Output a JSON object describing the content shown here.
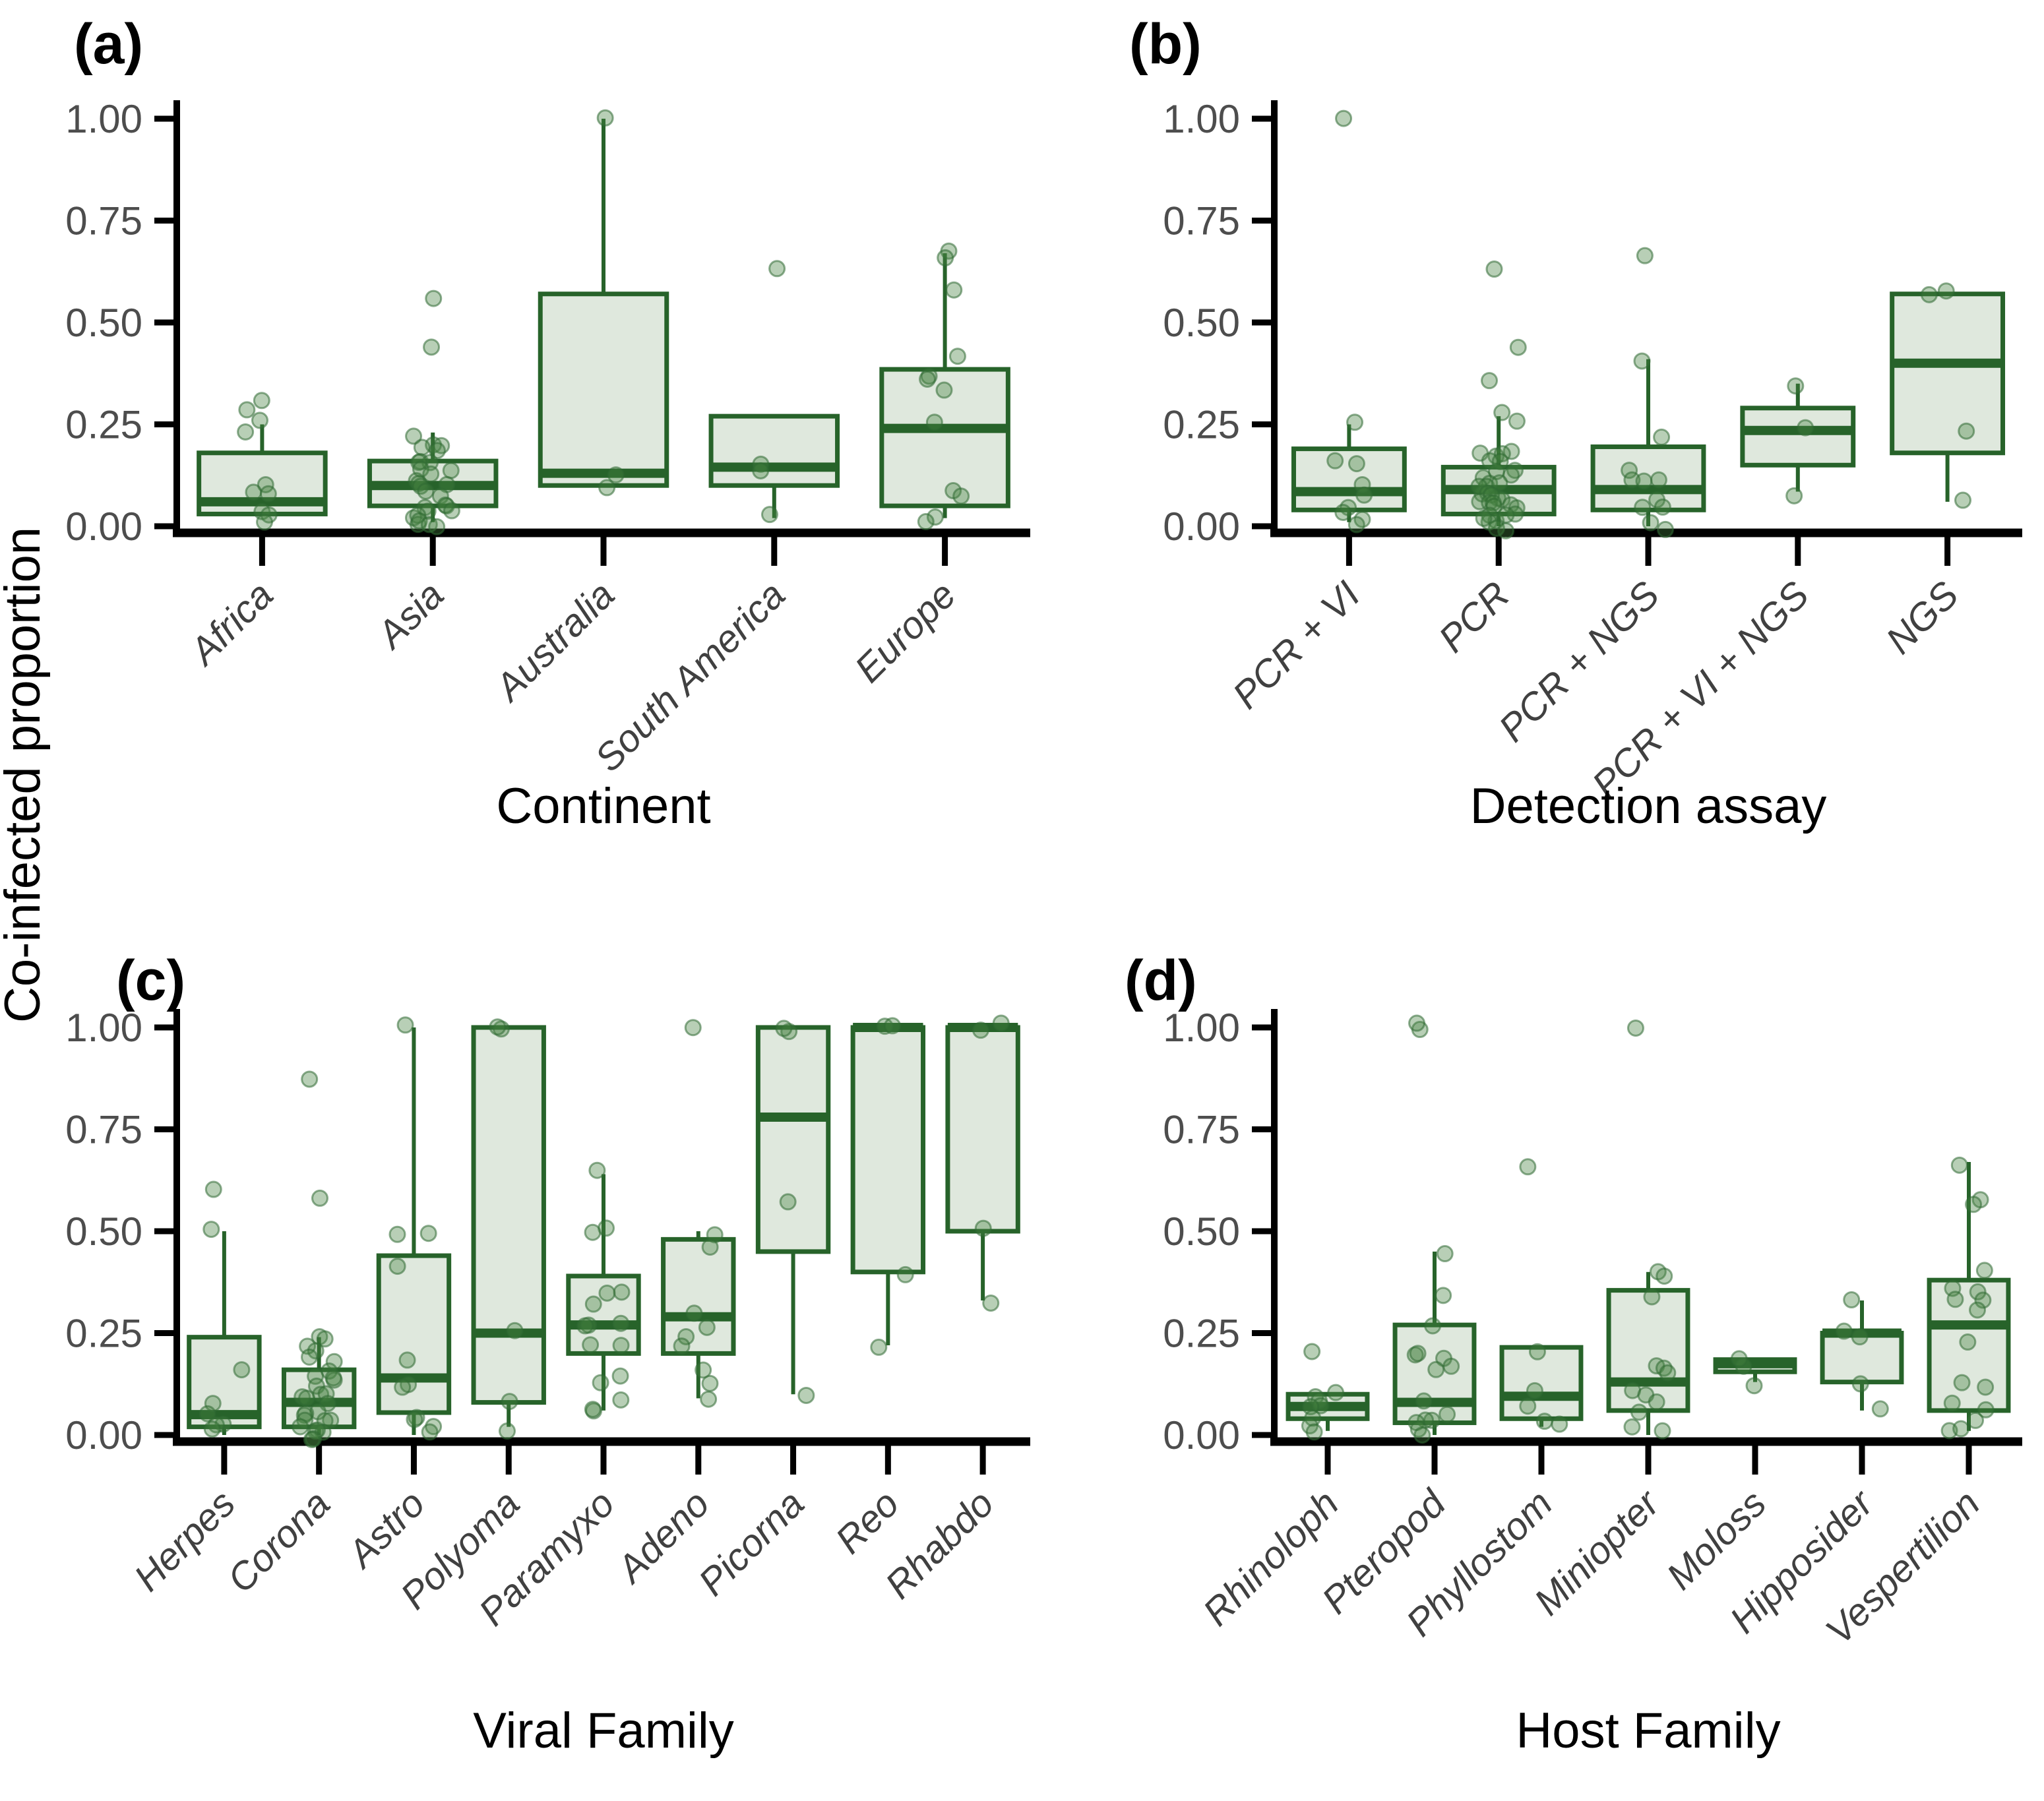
{
  "figure": {
    "ylabel": "Co-infected proportion",
    "y_ticks": [
      "0.00",
      "0.25",
      "0.50",
      "0.75",
      "1.00"
    ],
    "y_tick_values": [
      0,
      0.25,
      0.5,
      0.75,
      1.0
    ],
    "colors": {
      "box_stroke": "#27632a",
      "box_fill": "#dfe8dd",
      "point_fill": "#45803f",
      "point_stroke": "#2f6a33",
      "axis": "#000000",
      "tick_label": "#4d4d4d",
      "category_label": "#404040"
    }
  },
  "chart_data": [
    {
      "type": "box",
      "panel_label": "(a)",
      "xlabel": "Continent",
      "ylabel": "Co-infected proportion",
      "ylim": [
        0,
        1
      ],
      "grid": false,
      "categories": [
        "Africa",
        "Asia",
        "Australia",
        "South America",
        "Europe"
      ],
      "series": [
        {
          "name": "Africa",
          "q1": 0.03,
          "median": 0.06,
          "q3": 0.18,
          "whisker_low": 0.03,
          "whisker_high": 0.25,
          "points": [
            0.31,
            0.28,
            0.26,
            0.24,
            0.1,
            0.09,
            0.07,
            0.03,
            0.02,
            0.01
          ]
        },
        {
          "name": "Asia",
          "q1": 0.05,
          "median": 0.1,
          "q3": 0.16,
          "whisker_low": 0.01,
          "whisker_high": 0.23,
          "points": [
            0.57,
            0.45,
            0.23,
            0.21,
            0.2,
            0.19,
            0.18,
            0.17,
            0.16,
            0.15,
            0.14,
            0.13,
            0.12,
            0.11,
            0.1,
            0.1,
            0.09,
            0.08,
            0.07,
            0.06,
            0.05,
            0.04,
            0.03,
            0.03,
            0.02,
            0.02,
            0.01,
            0.01,
            0.0,
            0.0
          ]
        },
        {
          "name": "Australia",
          "q1": 0.1,
          "median": 0.13,
          "q3": 0.57,
          "whisker_low": 0.1,
          "whisker_high": 1.0,
          "points": [
            1.0,
            0.13,
            0.09
          ]
        },
        {
          "name": "South America",
          "q1": 0.1,
          "median": 0.145,
          "q3": 0.27,
          "whisker_low": 0.02,
          "whisker_high": 0.27,
          "points": [
            0.64,
            0.15,
            0.14,
            0.02
          ]
        },
        {
          "name": "Europe",
          "q1": 0.05,
          "median": 0.24,
          "q3": 0.385,
          "whisker_low": 0.02,
          "whisker_high": 0.67,
          "points": [
            0.67,
            0.65,
            0.57,
            0.41,
            0.36,
            0.35,
            0.34,
            0.25,
            0.08,
            0.07,
            0.03,
            0.02
          ]
        }
      ]
    },
    {
      "type": "box",
      "panel_label": "(b)",
      "xlabel": "Detection assay",
      "ylabel": "Co-infected proportion",
      "ylim": [
        0,
        1
      ],
      "grid": false,
      "categories": [
        "PCR + VI",
        "PCR",
        "PCR + NGS",
        "PCR + VI + NGS",
        "NGS"
      ],
      "series": [
        {
          "name": "PCR + VI",
          "q1": 0.04,
          "median": 0.085,
          "q3": 0.19,
          "whisker_low": 0.01,
          "whisker_high": 0.25,
          "points": [
            1.0,
            0.25,
            0.16,
            0.15,
            0.1,
            0.07,
            0.05,
            0.04,
            0.02,
            0.01
          ]
        },
        {
          "name": "PCR",
          "q1": 0.03,
          "median": 0.09,
          "q3": 0.145,
          "whisker_low": 0.0,
          "whisker_high": 0.27,
          "points": [
            0.64,
            0.45,
            0.35,
            0.27,
            0.26,
            0.19,
            0.18,
            0.18,
            0.17,
            0.16,
            0.15,
            0.14,
            0.13,
            0.13,
            0.12,
            0.11,
            0.1,
            0.1,
            0.09,
            0.09,
            0.08,
            0.08,
            0.07,
            0.07,
            0.06,
            0.06,
            0.05,
            0.05,
            0.04,
            0.04,
            0.03,
            0.03,
            0.02,
            0.02,
            0.01,
            0.01,
            0.0,
            0.0
          ]
        },
        {
          "name": "PCR + NGS",
          "q1": 0.04,
          "median": 0.09,
          "q3": 0.195,
          "whisker_low": 0.0,
          "whisker_high": 0.41,
          "points": [
            0.66,
            0.41,
            0.22,
            0.13,
            0.12,
            0.11,
            0.1,
            0.06,
            0.05,
            0.04,
            0.01,
            0.0
          ]
        },
        {
          "name": "PCR + VI + NGS",
          "q1": 0.15,
          "median": 0.235,
          "q3": 0.29,
          "whisker_low": 0.085,
          "whisker_high": 0.35,
          "points": [
            0.35,
            0.24,
            0.085
          ]
        },
        {
          "name": "NGS",
          "q1": 0.18,
          "median": 0.4,
          "q3": 0.57,
          "whisker_low": 0.06,
          "whisker_high": 0.57,
          "points": [
            0.57,
            0.56,
            0.23,
            0.06
          ]
        }
      ]
    },
    {
      "type": "box",
      "panel_label": "(c)",
      "xlabel": "Viral Family",
      "ylabel": "Co-infected proportion",
      "ylim": [
        0,
        1
      ],
      "grid": false,
      "categories": [
        "Herpes",
        "Corona",
        "Astro",
        "Polyoma",
        "Paramyxo",
        "Adeno",
        "Picorna",
        "Reo",
        "Rhabdo"
      ],
      "series": [
        {
          "name": "Herpes",
          "q1": 0.02,
          "median": 0.05,
          "q3": 0.24,
          "whisker_low": 0.0,
          "whisker_high": 0.5,
          "points": [
            0.6,
            0.5,
            0.15,
            0.07,
            0.05,
            0.03,
            0.02,
            0.01
          ]
        },
        {
          "name": "Corona",
          "q1": 0.02,
          "median": 0.08,
          "q3": 0.16,
          "whisker_low": 0.0,
          "whisker_high": 0.24,
          "points": [
            0.88,
            0.57,
            0.24,
            0.23,
            0.22,
            0.2,
            0.19,
            0.17,
            0.16,
            0.15,
            0.14,
            0.13,
            0.12,
            0.11,
            0.1,
            0.09,
            0.08,
            0.07,
            0.06,
            0.05,
            0.05,
            0.04,
            0.03,
            0.03,
            0.02,
            0.02,
            0.01,
            0.01,
            0.0,
            0.0
          ]
        },
        {
          "name": "Astro",
          "q1": 0.055,
          "median": 0.14,
          "q3": 0.44,
          "whisker_low": 0.0,
          "whisker_high": 1.0,
          "points": [
            1.0,
            0.5,
            0.5,
            0.41,
            0.19,
            0.13,
            0.12,
            0.05,
            0.03,
            0.02,
            0.0
          ]
        },
        {
          "name": "Polyoma",
          "q1": 0.08,
          "median": 0.25,
          "q3": 1.0,
          "whisker_low": 0.02,
          "whisker_high": 1.0,
          "points": [
            1.0,
            1.0,
            0.25,
            0.08,
            0.02
          ]
        },
        {
          "name": "Paramyxo",
          "q1": 0.2,
          "median": 0.27,
          "q3": 0.39,
          "whisker_low": 0.06,
          "whisker_high": 0.64,
          "points": [
            0.64,
            0.5,
            0.5,
            0.35,
            0.34,
            0.33,
            0.28,
            0.27,
            0.26,
            0.23,
            0.21,
            0.15,
            0.13,
            0.09,
            0.07,
            0.06
          ]
        },
        {
          "name": "Adeno",
          "q1": 0.2,
          "median": 0.29,
          "q3": 0.48,
          "whisker_low": 0.09,
          "whisker_high": 0.5,
          "points": [
            1.0,
            0.5,
            0.45,
            0.3,
            0.26,
            0.24,
            0.21,
            0.15,
            0.13,
            0.09
          ]
        },
        {
          "name": "Picorna",
          "q1": 0.45,
          "median": 0.78,
          "q3": 1.0,
          "whisker_low": 0.1,
          "whisker_high": 1.0,
          "points": [
            1.0,
            1.0,
            0.57,
            0.1
          ]
        },
        {
          "name": "Reo",
          "q1": 0.4,
          "median": 1.0,
          "q3": 1.0,
          "whisker_low": 0.22,
          "whisker_high": 1.0,
          "points": [
            1.0,
            1.0,
            0.4,
            0.22
          ]
        },
        {
          "name": "Rhabdo",
          "q1": 0.5,
          "median": 1.0,
          "q3": 1.0,
          "whisker_low": 0.33,
          "whisker_high": 1.0,
          "points": [
            1.0,
            1.0,
            0.5,
            0.33
          ]
        }
      ]
    },
    {
      "type": "box",
      "panel_label": "(d)",
      "xlabel": "Host Family",
      "ylabel": "Co-infected proportion",
      "ylim": [
        0,
        1
      ],
      "grid": false,
      "categories": [
        "Rhinoloph",
        "Pteropod",
        "Phyllostom",
        "Miniopter",
        "Moloss",
        "Hipposider",
        "Vespertilion"
      ],
      "series": [
        {
          "name": "Rhinoloph",
          "q1": 0.04,
          "median": 0.07,
          "q3": 0.1,
          "whisker_low": 0.01,
          "whisker_high": 0.1,
          "points": [
            0.2,
            0.1,
            0.09,
            0.08,
            0.07,
            0.06,
            0.05,
            0.03,
            0.01
          ]
        },
        {
          "name": "Pteropod",
          "q1": 0.03,
          "median": 0.08,
          "q3": 0.27,
          "whisker_low": 0.0,
          "whisker_high": 0.45,
          "points": [
            1.0,
            1.0,
            0.45,
            0.34,
            0.27,
            0.2,
            0.19,
            0.19,
            0.16,
            0.15,
            0.08,
            0.05,
            0.04,
            0.03,
            0.02,
            0.01,
            0.0
          ]
        },
        {
          "name": "Phyllostom",
          "q1": 0.04,
          "median": 0.095,
          "q3": 0.215,
          "whisker_low": 0.02,
          "whisker_high": 0.215,
          "points": [
            0.65,
            0.21,
            0.1,
            0.07,
            0.04,
            0.02
          ]
        },
        {
          "name": "Miniopter",
          "q1": 0.06,
          "median": 0.13,
          "q3": 0.355,
          "whisker_low": 0.0,
          "whisker_high": 0.4,
          "points": [
            1.0,
            0.4,
            0.39,
            0.34,
            0.18,
            0.17,
            0.15,
            0.1,
            0.09,
            0.08,
            0.05,
            0.02,
            0.01
          ]
        },
        {
          "name": "Moloss",
          "q1": 0.155,
          "median": 0.175,
          "q3": 0.185,
          "whisker_low": 0.13,
          "whisker_high": 0.185,
          "points": [
            0.18,
            0.18,
            0.13
          ]
        },
        {
          "name": "Hipposider",
          "q1": 0.13,
          "median": 0.25,
          "q3": 0.25,
          "whisker_low": 0.06,
          "whisker_high": 0.33,
          "points": [
            0.33,
            0.25,
            0.25,
            0.13,
            0.06
          ]
        },
        {
          "name": "Vespertilion",
          "q1": 0.06,
          "median": 0.27,
          "q3": 0.38,
          "whisker_low": 0.01,
          "whisker_high": 0.67,
          "points": [
            0.67,
            0.58,
            0.57,
            0.41,
            0.36,
            0.35,
            0.34,
            0.33,
            0.31,
            0.23,
            0.13,
            0.12,
            0.07,
            0.06,
            0.04,
            0.02,
            0.01
          ]
        }
      ]
    }
  ]
}
